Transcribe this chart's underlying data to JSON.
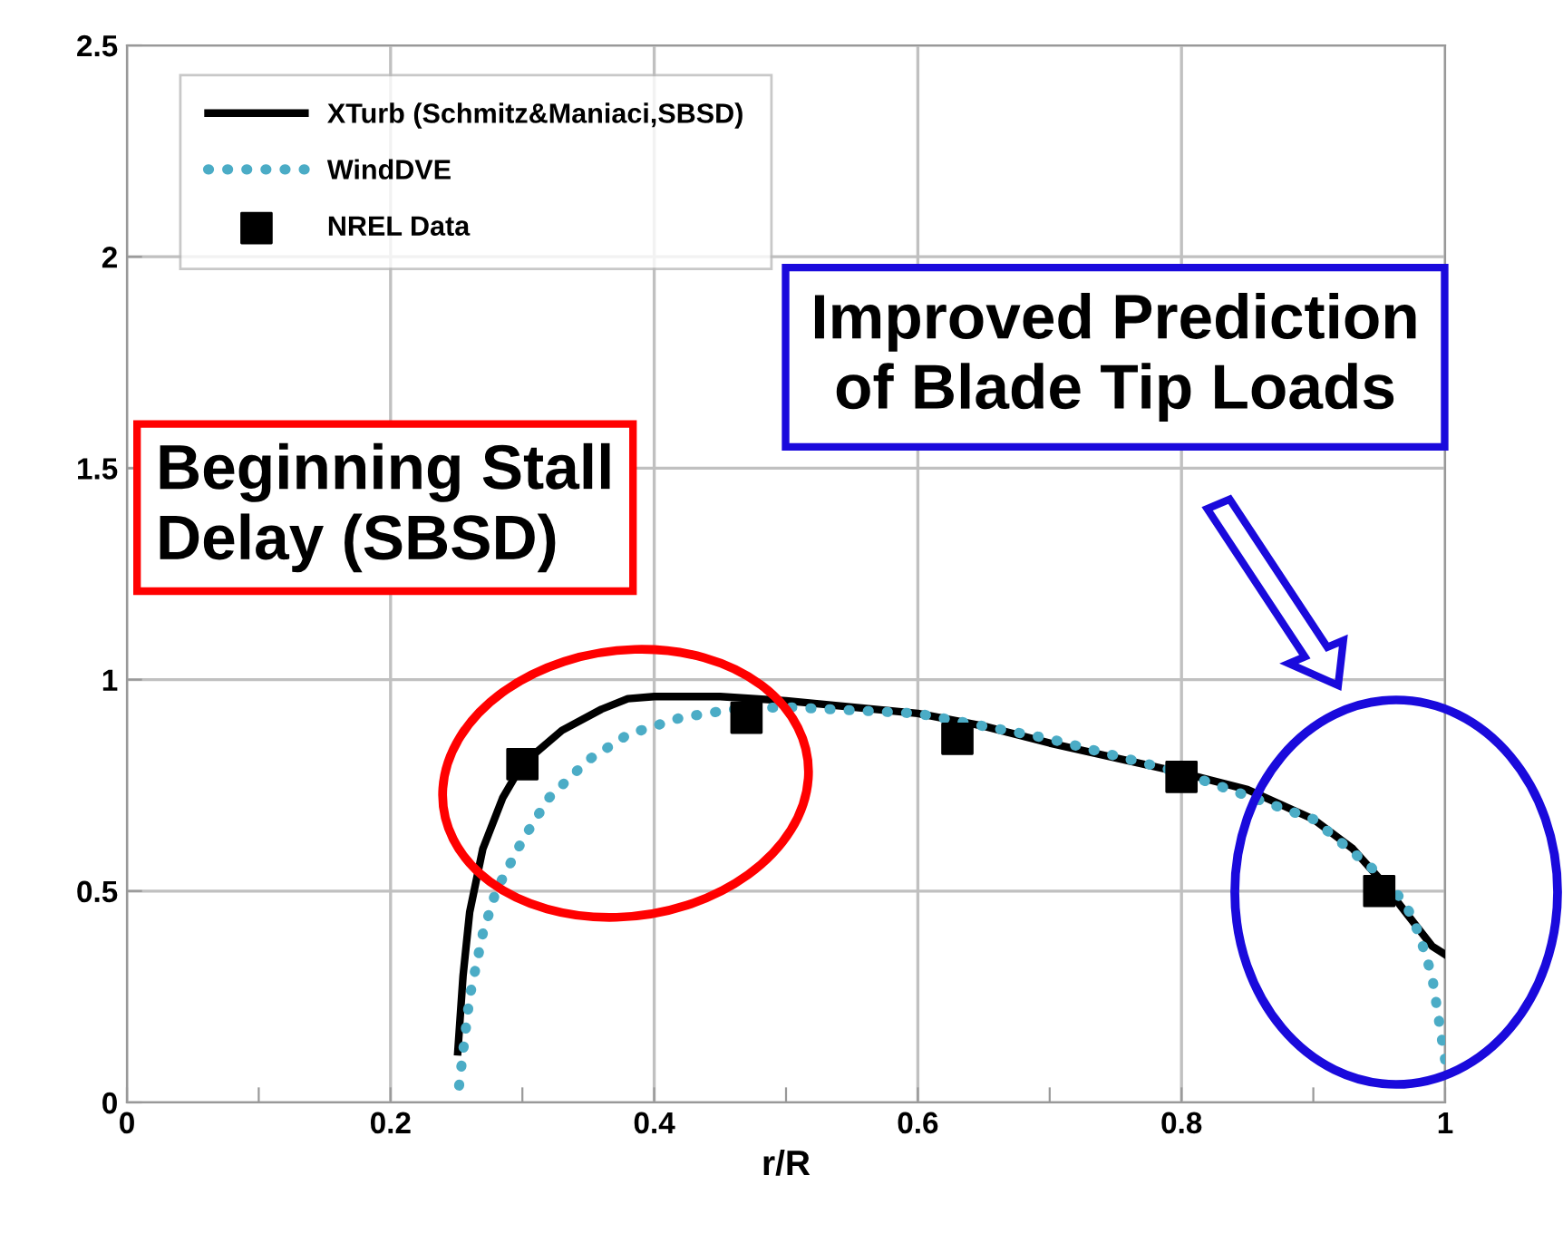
{
  "chart_data": {
    "type": "line",
    "xlabel": "r/R",
    "xlim": [
      0,
      1
    ],
    "xticks": [
      0,
      {
        "value": 0.1,
        "label": null
      },
      0.2,
      {
        "value": 0.3,
        "label": null
      },
      0.4,
      {
        "value": 0.5,
        "label": null
      },
      0.6,
      {
        "value": 0.7,
        "label": null
      },
      0.8,
      {
        "value": 0.9,
        "label": null
      },
      1
    ],
    "ylim": [
      0,
      2.5
    ],
    "yticks": [
      0,
      0.5,
      1,
      1.5,
      2,
      2.5
    ],
    "grid": true,
    "legend": "top left",
    "series": [
      {
        "name": "XTurb (Schmitz&Maniaci,SBSD)",
        "color": "#000000",
        "line_style": "solid",
        "marker": "none",
        "x": [
          0.251,
          0.255,
          0.26,
          0.27,
          0.285,
          0.3,
          0.33,
          0.36,
          0.38,
          0.4,
          0.45,
          0.5,
          0.6,
          0.65,
          0.7,
          0.8,
          0.85,
          0.9,
          0.93,
          0.95,
          0.97,
          0.99,
          1.0
        ],
        "values": [
          0.12,
          0.3,
          0.45,
          0.6,
          0.72,
          0.8,
          0.88,
          0.93,
          0.955,
          0.96,
          0.96,
          0.95,
          0.92,
          0.89,
          0.85,
          0.78,
          0.74,
          0.67,
          0.6,
          0.53,
          0.45,
          0.37,
          0.35
        ]
      },
      {
        "name": "WindDVE",
        "color": "#4bacc6",
        "line_style": "dotted",
        "marker": "none",
        "x": [
          0.252,
          0.255,
          0.26,
          0.27,
          0.28,
          0.3,
          0.32,
          0.35,
          0.38,
          0.42,
          0.46,
          0.5,
          0.6,
          0.7,
          0.8,
          0.9,
          0.95,
          0.97,
          0.98,
          0.99,
          0.995,
          1.0
        ],
        "values": [
          0.04,
          0.12,
          0.25,
          0.4,
          0.5,
          0.62,
          0.72,
          0.81,
          0.87,
          0.91,
          0.93,
          0.935,
          0.92,
          0.86,
          0.78,
          0.67,
          0.54,
          0.47,
          0.4,
          0.3,
          0.2,
          0.1
        ]
      },
      {
        "name": "NREL Data",
        "type": "scatter",
        "color": "#000000",
        "marker": "square",
        "x": [
          0.3,
          0.47,
          0.63,
          0.8,
          0.95
        ],
        "values": [
          0.8,
          0.91,
          0.86,
          0.77,
          0.5
        ]
      }
    ],
    "annotations": [
      "Beginning Stall\nDelay (SBSD)",
      "Improved Prediction\nof Blade Tip Loads"
    ]
  }
}
